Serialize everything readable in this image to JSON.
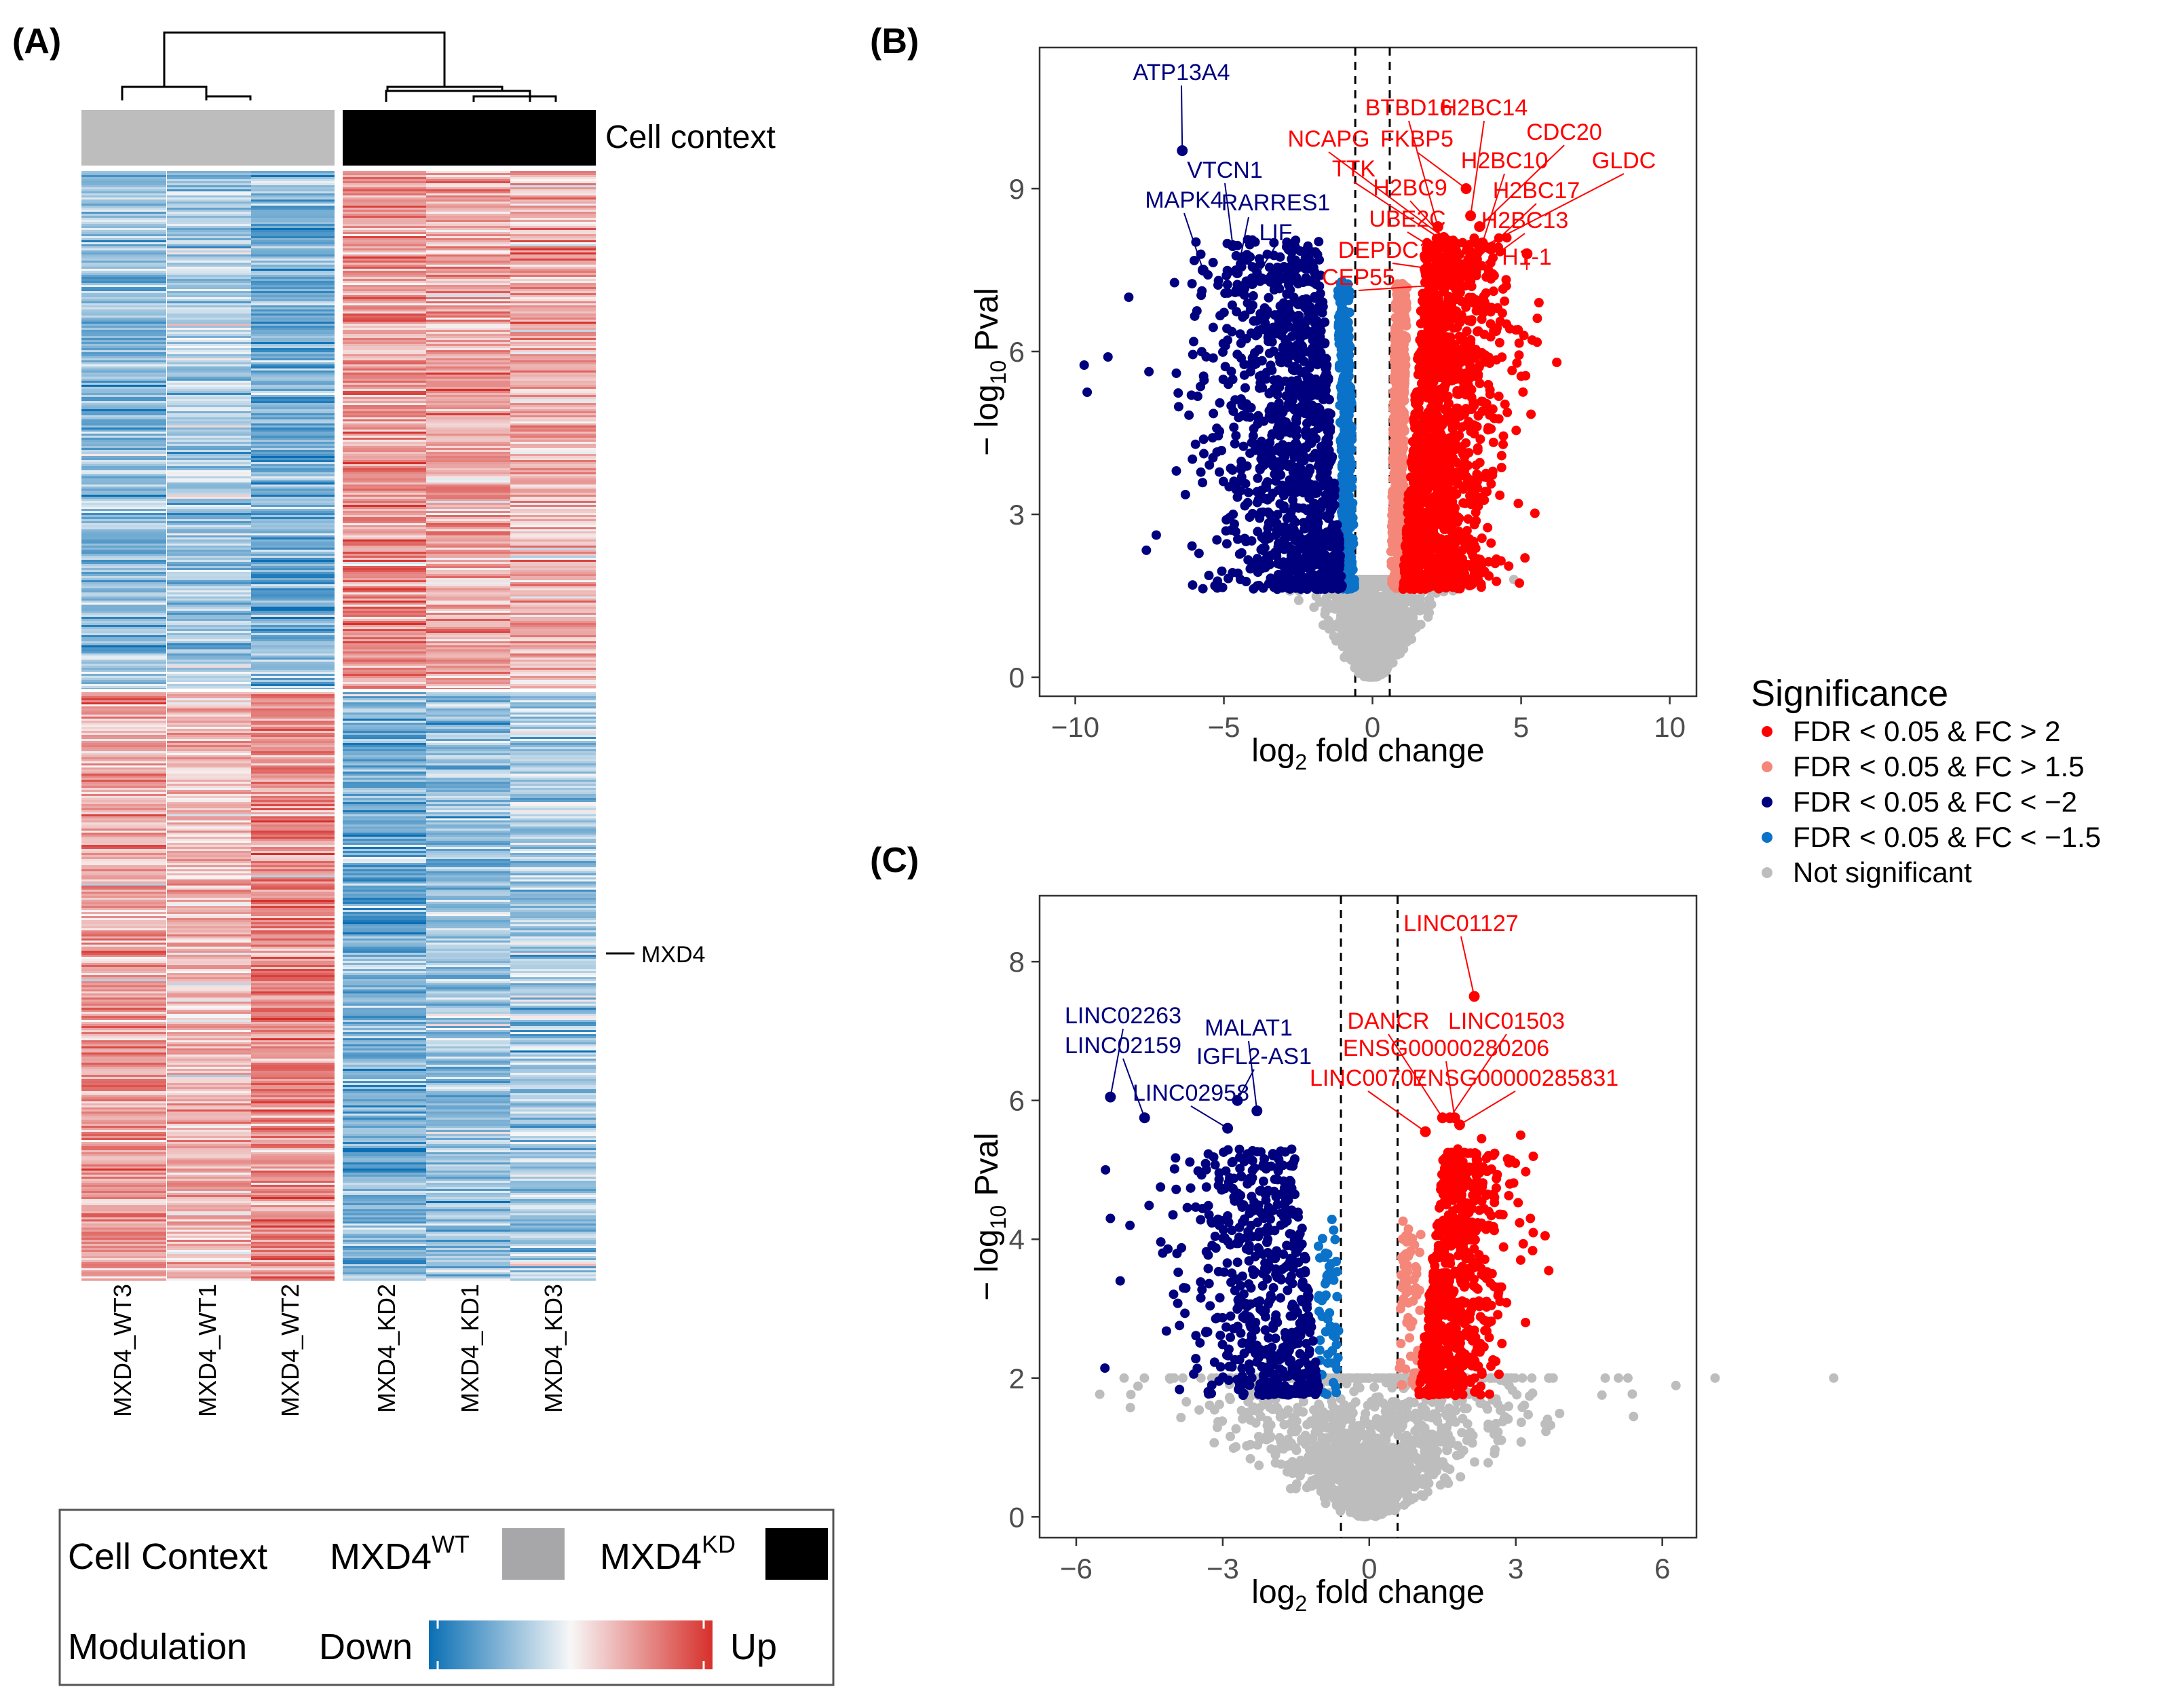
{
  "panels": {
    "a": "(A)",
    "b": "(B)",
    "c": "(C)"
  },
  "chart_data": [
    {
      "type": "heatmap",
      "panel": "(A)",
      "columns": [
        "MXD4_WT3",
        "MXD4_WT1",
        "MXD4_WT2",
        "MXD4_KD2",
        "MXD4_KD1",
        "MXD4_KD3"
      ],
      "groups": [
        "MXD4WT",
        "MXD4WT",
        "MXD4WT",
        "MXD4KD",
        "MXD4KD",
        "MXD4KD"
      ],
      "group_colors": {
        "MXD4WT": "#a7a7aa",
        "MXD4KD": "#000000"
      },
      "annotation_label": "Cell context",
      "row_label": "MXD4",
      "blocks": [
        {
          "rows": "upper cluster",
          "values": [
            "Down",
            "Down",
            "Down",
            "Up",
            "Up",
            "Up"
          ]
        },
        {
          "rows": "lower cluster",
          "values": [
            "Up",
            "Up",
            "Up",
            "Down",
            "Down",
            "Down"
          ]
        }
      ],
      "legend": {
        "cell_context_title": "Cell Context",
        "wt_label": "MXD4",
        "wt_sup": "WT",
        "kd_label": "MXD4",
        "kd_sup": "KD",
        "modulation_title": "Modulation",
        "down_label": "Down",
        "up_label": "Up",
        "colors": [
          "#0a6fb4",
          "#f7f7f7",
          "#d7302b"
        ]
      }
    },
    {
      "type": "scatter",
      "panel": "(B)",
      "xlabel": "log2 fold change",
      "ylabel": "-log10 Pval",
      "xlim": [
        -11.2,
        10.9
      ],
      "ylim": [
        -0.35,
        11.6
      ],
      "xticks": [
        -10,
        -5,
        0,
        5,
        10
      ],
      "xtick_labels": [
        "−10",
        "−5",
        "0",
        "5",
        "10"
      ],
      "yticks": [
        0,
        3,
        6,
        9
      ],
      "xtick_labels_y": [
        "0",
        "3",
        "6",
        "9"
      ],
      "thresholds_x": [
        -0.58,
        0.58
      ],
      "labeled_down": [
        {
          "gene": "ATP13A4",
          "x": -6.4,
          "y": 9.7
        },
        {
          "gene": "VTCN1",
          "x": -4.7,
          "y": 7.95
        },
        {
          "gene": "MAPK4",
          "x": -5.7,
          "y": 7.5
        },
        {
          "gene": "RARRES1",
          "x": -4.55,
          "y": 7.45
        },
        {
          "gene": "LIF",
          "x": -4.05,
          "y": 7.25
        }
      ],
      "labeled_up": [
        {
          "gene": "BTBD16",
          "x": 2.2,
          "y": 8.3
        },
        {
          "gene": "H2BC14",
          "x": 3.3,
          "y": 8.5
        },
        {
          "gene": "NCAPG",
          "x": 2.4,
          "y": 8.1
        },
        {
          "gene": "FKBP5",
          "x": 3.15,
          "y": 9.0
        },
        {
          "gene": "CDC20",
          "x": 3.6,
          "y": 8.3
        },
        {
          "gene": "TTK",
          "x": 2.5,
          "y": 8.0
        },
        {
          "gene": "H2BC10",
          "x": 3.7,
          "y": 8.0
        },
        {
          "gene": "GLDC",
          "x": 3.6,
          "y": 7.9
        },
        {
          "gene": "H2BC9",
          "x": 2.8,
          "y": 7.85
        },
        {
          "gene": "H2BC17",
          "x": 3.5,
          "y": 7.7
        },
        {
          "gene": "UBE2C",
          "x": 2.95,
          "y": 7.6
        },
        {
          "gene": "H2BC13",
          "x": 3.45,
          "y": 7.5
        },
        {
          "gene": "DEPDC1B",
          "x": 2.95,
          "y": 7.45
        },
        {
          "gene": "H1-1",
          "x": 5.2,
          "y": 7.8
        },
        {
          "gene": "CEP55",
          "x": 2.9,
          "y": 7.25
        }
      ]
    },
    {
      "type": "scatter",
      "panel": "(C)",
      "xlabel": "log2 fold change",
      "ylabel": "-log10 Pval",
      "xlim": [
        -6.75,
        6.7
      ],
      "ylim": [
        -0.3,
        8.95
      ],
      "xticks": [
        -6,
        -3,
        0,
        3,
        6
      ],
      "xtick_labels": [
        "−6",
        "−3",
        "0",
        "3",
        "6"
      ],
      "yticks": [
        0,
        2,
        4,
        6,
        8
      ],
      "ytick_labels": [
        "0",
        "2",
        "4",
        "6",
        "8"
      ],
      "thresholds_x": [
        -0.58,
        0.58
      ],
      "labeled_down": [
        {
          "gene": "LINC02263",
          "x": -5.3,
          "y": 6.05
        },
        {
          "gene": "LINC02159",
          "x": -4.6,
          "y": 5.75
        },
        {
          "gene": "MALAT1",
          "x": -2.3,
          "y": 5.85
        },
        {
          "gene": "IGFL2-AS1",
          "x": -2.7,
          "y": 6.0
        },
        {
          "gene": "LINC02958",
          "x": -2.9,
          "y": 5.6
        }
      ],
      "labeled_up": [
        {
          "gene": "LINC01127",
          "x": 2.15,
          "y": 7.5
        },
        {
          "gene": "DANCR",
          "x": 1.5,
          "y": 5.75
        },
        {
          "gene": "LINC01503",
          "x": 1.65,
          "y": 5.75
        },
        {
          "gene": "ENSG00000280206",
          "x": 1.75,
          "y": 5.75
        },
        {
          "gene": "LINC00707",
          "x": 1.15,
          "y": 5.55
        },
        {
          "gene": "ENSG00000285831",
          "x": 1.85,
          "y": 5.65
        }
      ]
    }
  ],
  "legend": {
    "title": "Significance",
    "entries": [
      {
        "label": "FDR < 0.05 & FC > 2",
        "color": "#ff0000"
      },
      {
        "label": "FDR < 0.05 & FC > 1.5",
        "color": "#f4877a"
      },
      {
        "label": "FDR < 0.05 & FC < −2",
        "color": "#00007f"
      },
      {
        "label": "FDR < 0.05 & FC < −1.5",
        "color": "#0a72c8"
      },
      {
        "label": "Not significant",
        "color": "#bdbdbd"
      }
    ]
  },
  "colors": {
    "up_strong": "#ff0000",
    "up_mild": "#f4877a",
    "down_strong": "#00007f",
    "down_mild": "#0a72c8",
    "ns": "#bdbdbd",
    "heat_low": "#0a6fb4",
    "heat_mid": "#f7f7f7",
    "heat_high": "#d7302b"
  }
}
